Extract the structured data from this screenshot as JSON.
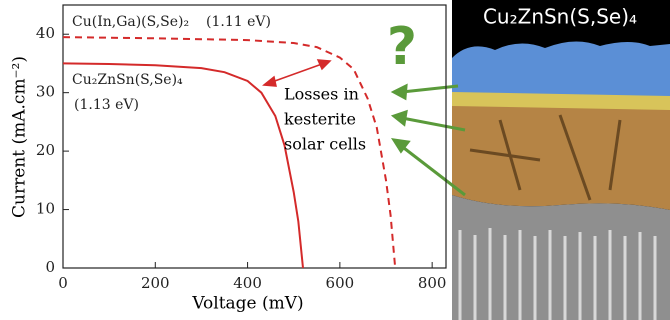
{
  "chart_data": {
    "type": "line",
    "x_label": "Voltage (mV)",
    "y_label": "Current (mA.cm⁻²)",
    "xlim": [
      0,
      830
    ],
    "ylim": [
      0,
      45
    ],
    "xticks": [
      0,
      200,
      400,
      600,
      800
    ],
    "yticks": [
      0,
      10,
      20,
      30,
      40
    ],
    "series": [
      {
        "name": "Cu₂ZnSn(S,Se)₄",
        "color": "#d42a2a",
        "line_style": "solid",
        "x": [
          0,
          100,
          200,
          300,
          350,
          400,
          430,
          460,
          480,
          500,
          510,
          520
        ],
        "values": [
          35,
          34.9,
          34.7,
          34.2,
          33.5,
          32,
          30,
          26,
          21,
          13,
          8,
          0
        ]
      },
      {
        "name": "Cu(In,Ga)(S,Se)₂",
        "color": "#d42a2a",
        "line_style": "dashed",
        "x": [
          0,
          200,
          400,
          500,
          550,
          600,
          630,
          660,
          680,
          700,
          710,
          720
        ],
        "values": [
          39.5,
          39.3,
          39,
          38.5,
          37.8,
          36,
          34,
          29,
          24,
          15,
          9,
          0
        ]
      }
    ],
    "annotations": [
      "(1.11 eV)",
      "(1.13 eV)",
      "Losses in",
      "kesterite",
      "solar cells",
      "?"
    ],
    "image_title": "Cu₂ZnSn(S,Se)₄"
  }
}
